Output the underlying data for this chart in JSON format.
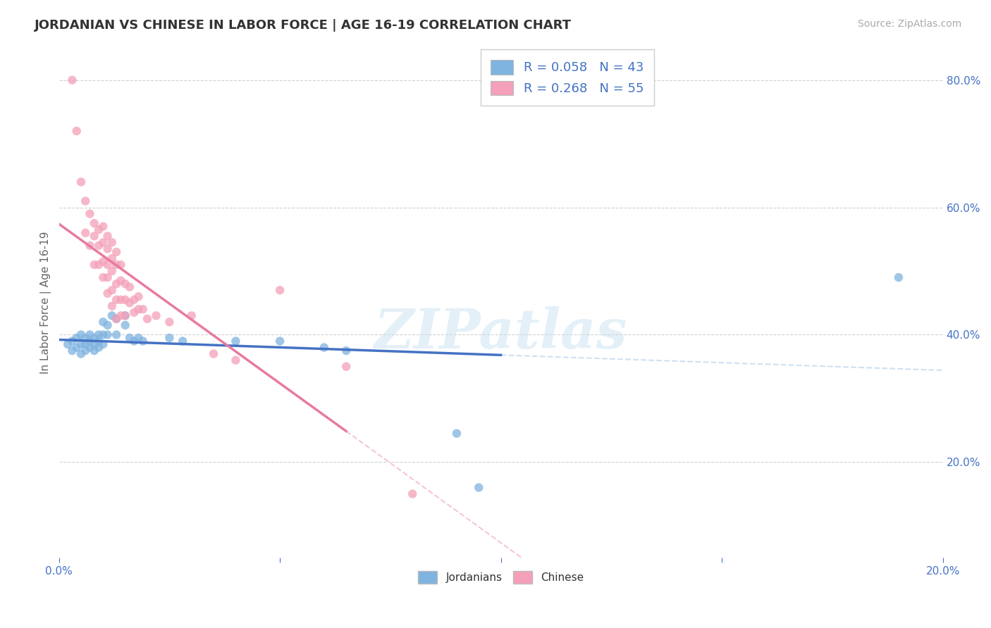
{
  "title": "JORDANIAN VS CHINESE IN LABOR FORCE | AGE 16-19 CORRELATION CHART",
  "source": "Source: ZipAtlas.com",
  "ylabel": "In Labor Force | Age 16-19",
  "xlim": [
    0.0,
    0.2
  ],
  "ylim": [
    0.05,
    0.85
  ],
  "yticks": [
    0.2,
    0.4,
    0.6,
    0.8
  ],
  "ytick_labels": [
    "20.0%",
    "40.0%",
    "60.0%",
    "80.0%"
  ],
  "background_color": "#ffffff",
  "grid_color": "#cccccc",
  "watermark": "ZIPatlas",
  "jordanian_color": "#7fb3e0",
  "chinese_color": "#f4a0b8",
  "jordanian_line_color": "#4472c4",
  "chinese_line_color": "#e87aa0",
  "jordanian_line_dash_color": "#c8ddf0",
  "chinese_line_dash_color": "#f4c0d0",
  "R_jordanian": "0.058",
  "N_jordanian": "43",
  "R_chinese": "0.268",
  "N_chinese": "55",
  "jordanian_scatter": [
    [
      0.002,
      0.385
    ],
    [
      0.003,
      0.39
    ],
    [
      0.003,
      0.375
    ],
    [
      0.004,
      0.395
    ],
    [
      0.004,
      0.38
    ],
    [
      0.005,
      0.4
    ],
    [
      0.005,
      0.385
    ],
    [
      0.005,
      0.37
    ],
    [
      0.006,
      0.395
    ],
    [
      0.006,
      0.385
    ],
    [
      0.006,
      0.375
    ],
    [
      0.007,
      0.4
    ],
    [
      0.007,
      0.39
    ],
    [
      0.007,
      0.38
    ],
    [
      0.008,
      0.395
    ],
    [
      0.008,
      0.385
    ],
    [
      0.008,
      0.375
    ],
    [
      0.009,
      0.4
    ],
    [
      0.009,
      0.39
    ],
    [
      0.009,
      0.38
    ],
    [
      0.01,
      0.42
    ],
    [
      0.01,
      0.4
    ],
    [
      0.01,
      0.385
    ],
    [
      0.011,
      0.415
    ],
    [
      0.011,
      0.4
    ],
    [
      0.012,
      0.43
    ],
    [
      0.013,
      0.425
    ],
    [
      0.013,
      0.4
    ],
    [
      0.015,
      0.43
    ],
    [
      0.015,
      0.415
    ],
    [
      0.016,
      0.395
    ],
    [
      0.017,
      0.39
    ],
    [
      0.018,
      0.395
    ],
    [
      0.019,
      0.39
    ],
    [
      0.025,
      0.395
    ],
    [
      0.028,
      0.39
    ],
    [
      0.04,
      0.39
    ],
    [
      0.05,
      0.39
    ],
    [
      0.06,
      0.38
    ],
    [
      0.065,
      0.375
    ],
    [
      0.09,
      0.245
    ],
    [
      0.095,
      0.16
    ],
    [
      0.19,
      0.49
    ]
  ],
  "chinese_scatter": [
    [
      0.003,
      0.8
    ],
    [
      0.004,
      0.72
    ],
    [
      0.005,
      0.64
    ],
    [
      0.006,
      0.61
    ],
    [
      0.006,
      0.56
    ],
    [
      0.007,
      0.59
    ],
    [
      0.007,
      0.54
    ],
    [
      0.008,
      0.575
    ],
    [
      0.008,
      0.555
    ],
    [
      0.008,
      0.51
    ],
    [
      0.009,
      0.565
    ],
    [
      0.009,
      0.54
    ],
    [
      0.009,
      0.51
    ],
    [
      0.01,
      0.57
    ],
    [
      0.01,
      0.545
    ],
    [
      0.01,
      0.515
    ],
    [
      0.01,
      0.49
    ],
    [
      0.011,
      0.555
    ],
    [
      0.011,
      0.535
    ],
    [
      0.011,
      0.51
    ],
    [
      0.011,
      0.49
    ],
    [
      0.011,
      0.465
    ],
    [
      0.012,
      0.545
    ],
    [
      0.012,
      0.52
    ],
    [
      0.012,
      0.5
    ],
    [
      0.012,
      0.47
    ],
    [
      0.012,
      0.445
    ],
    [
      0.013,
      0.53
    ],
    [
      0.013,
      0.51
    ],
    [
      0.013,
      0.48
    ],
    [
      0.013,
      0.455
    ],
    [
      0.013,
      0.425
    ],
    [
      0.014,
      0.51
    ],
    [
      0.014,
      0.485
    ],
    [
      0.014,
      0.455
    ],
    [
      0.014,
      0.43
    ],
    [
      0.015,
      0.48
    ],
    [
      0.015,
      0.455
    ],
    [
      0.015,
      0.43
    ],
    [
      0.016,
      0.475
    ],
    [
      0.016,
      0.45
    ],
    [
      0.017,
      0.455
    ],
    [
      0.017,
      0.435
    ],
    [
      0.018,
      0.46
    ],
    [
      0.018,
      0.44
    ],
    [
      0.019,
      0.44
    ],
    [
      0.02,
      0.425
    ],
    [
      0.022,
      0.43
    ],
    [
      0.025,
      0.42
    ],
    [
      0.03,
      0.43
    ],
    [
      0.035,
      0.37
    ],
    [
      0.04,
      0.36
    ],
    [
      0.05,
      0.47
    ],
    [
      0.065,
      0.35
    ],
    [
      0.08,
      0.15
    ]
  ]
}
